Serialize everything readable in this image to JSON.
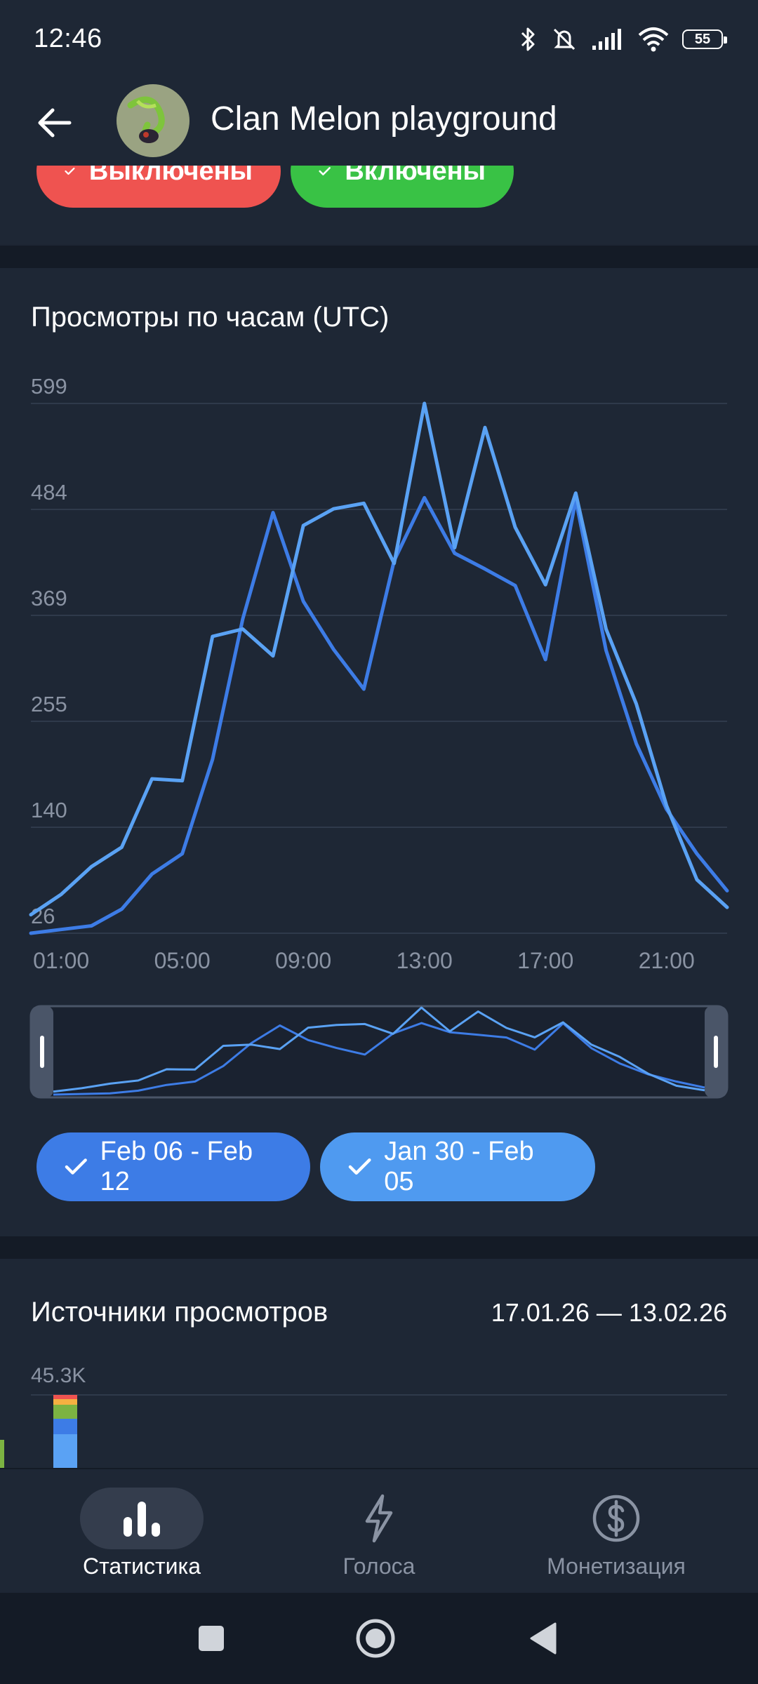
{
  "status_bar": {
    "time": "12:46",
    "battery": "55"
  },
  "app_bar": {
    "title": "Clan Melon playground"
  },
  "toggles": [
    {
      "label": "Выключены",
      "color": "#ef5350"
    },
    {
      "label": "Включены",
      "color": "#39c245"
    }
  ],
  "hourly_section": {
    "title": "Просмотры по часам (UTC)",
    "legend": [
      {
        "label": "Feb 06 - Feb 12",
        "color": "#3d7ce6"
      },
      {
        "label": "Jan 30 - Feb 05",
        "color": "#4f9af0"
      }
    ]
  },
  "chart_data": {
    "type": "line",
    "title": "Просмотры по часам (UTC)",
    "xlabel": "",
    "ylabel": "",
    "x": [
      0,
      1,
      2,
      3,
      4,
      5,
      6,
      7,
      8,
      9,
      10,
      11,
      12,
      13,
      14,
      15,
      16,
      17,
      18,
      19,
      20,
      21,
      22,
      23
    ],
    "x_ticks": [
      {
        "x": 1,
        "label": "01:00"
      },
      {
        "x": 5,
        "label": "05:00"
      },
      {
        "x": 9,
        "label": "09:00"
      },
      {
        "x": 13,
        "label": "13:00"
      },
      {
        "x": 17,
        "label": "17:00"
      },
      {
        "x": 21,
        "label": "21:00"
      }
    ],
    "y_ticks": [
      "26",
      "140",
      "255",
      "369",
      "484",
      "599"
    ],
    "ylim": [
      26,
      599
    ],
    "grid": true,
    "series": [
      {
        "color": "#3d7ce6",
        "values": [
          26,
          30,
          34,
          52,
          90,
          112,
          214,
          366,
          481,
          385,
          333,
          290,
          429,
          497,
          437,
          420,
          402,
          322,
          495,
          332,
          231,
          160,
          112,
          72
        ]
      },
      {
        "color": "#5aa2f4",
        "values": [
          46,
          68,
          98,
          119,
          193,
          191,
          347,
          355,
          326,
          467,
          485,
          491,
          426,
          599,
          443,
          573,
          465,
          403,
          502,
          355,
          274,
          164,
          84,
          54
        ]
      }
    ]
  },
  "sources_section": {
    "title": "Источники просмотров",
    "date_range": "17.01.26 — 13.02.26",
    "y_max": "45.3K"
  },
  "bottom_nav": [
    {
      "label": "Статистика",
      "icon": "bar-chart-icon",
      "active": true
    },
    {
      "label": "Голоса",
      "icon": "lightning-icon",
      "active": false
    },
    {
      "label": "Монетизация",
      "icon": "dollar-circle-icon",
      "active": false
    }
  ]
}
